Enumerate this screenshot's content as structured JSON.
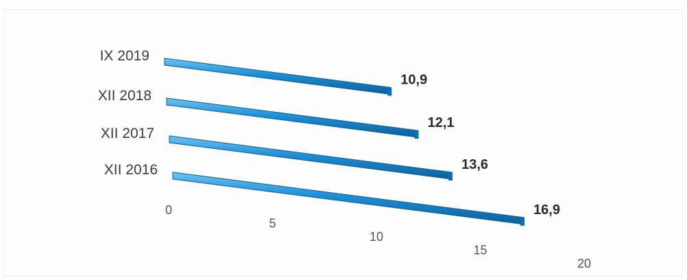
{
  "chart_data": {
    "type": "bar",
    "orientation": "horizontal",
    "categories": [
      "IX 2019",
      "XII 2018",
      "XII 2017",
      "XII 2016"
    ],
    "values": [
      10.9,
      12.1,
      13.6,
      16.9
    ],
    "value_labels": [
      "10,9",
      "12,1",
      "13,6",
      "16,9"
    ],
    "x_ticks": [
      "0",
      "5",
      "10",
      "15",
      "20"
    ],
    "xlim": [
      0,
      20
    ],
    "grid": false,
    "legend": "none",
    "bar_color": "#1d8fd6"
  }
}
